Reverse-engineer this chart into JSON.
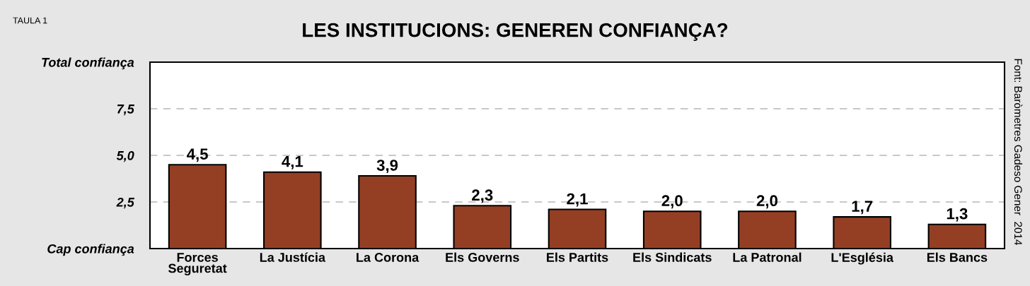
{
  "chart_data": {
    "type": "bar",
    "title": "LES INSTITUCIONS: GENEREN CONFIANÇA?",
    "categories": [
      "Forces\nSeguretat",
      "La Justícia",
      "La Corona",
      "Els Governs",
      "Els Partits",
      "Els Sindicats",
      "La Patronal",
      "L'Església",
      "Els Bancs"
    ],
    "values": [
      4.5,
      4.1,
      3.9,
      2.3,
      2.1,
      2.0,
      2.0,
      1.7,
      1.3
    ],
    "value_labels": [
      "4,5",
      "4,1",
      "3,9",
      "2,3",
      "2,1",
      "2,0",
      "2,0",
      "1,7",
      "1,3"
    ],
    "color": "#943f24",
    "ylim": [
      0,
      10
    ],
    "yticks": [
      {
        "value": 0,
        "label": "Cap confiança"
      },
      {
        "value": 2.5,
        "label": "2,5"
      },
      {
        "value": 5,
        "label": "5,0"
      },
      {
        "value": 7.5,
        "label": "7,5"
      },
      {
        "value": 10,
        "label": "Total confiança"
      }
    ],
    "grid": "y",
    "annotations": [
      "TAULA 1",
      "Font: Baròmetres Gadeso Gener  2014"
    ]
  }
}
